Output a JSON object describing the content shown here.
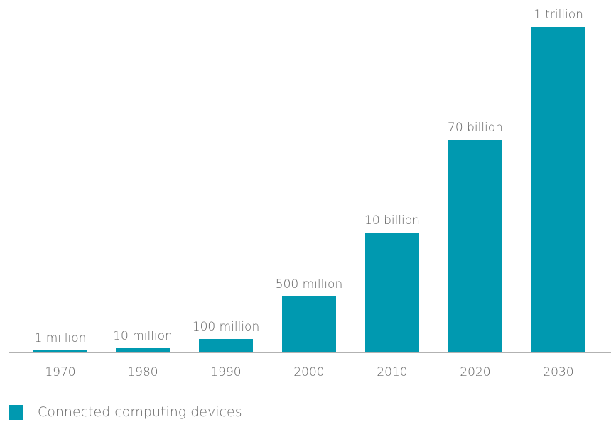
{
  "chart_data": {
    "type": "bar",
    "categories": [
      "1970",
      "1980",
      "1990",
      "2000",
      "2010",
      "2020",
      "2030"
    ],
    "values": [
      1000000,
      10000000,
      100000000,
      500000000,
      10000000000,
      70000000000,
      1000000000000
    ],
    "data_labels": [
      "1 million",
      "10 million",
      "100 million",
      "500 million",
      "10 billion",
      "70 billion",
      "1 trillion"
    ],
    "y_scale": "log",
    "series": [
      {
        "name": "Connected computing devices",
        "color": "#0099b0"
      }
    ],
    "legend_position": "bottom-left",
    "grid": false
  },
  "colors": {
    "bar": "#0099b0",
    "axis": "#666666",
    "label_text": "#666666"
  }
}
